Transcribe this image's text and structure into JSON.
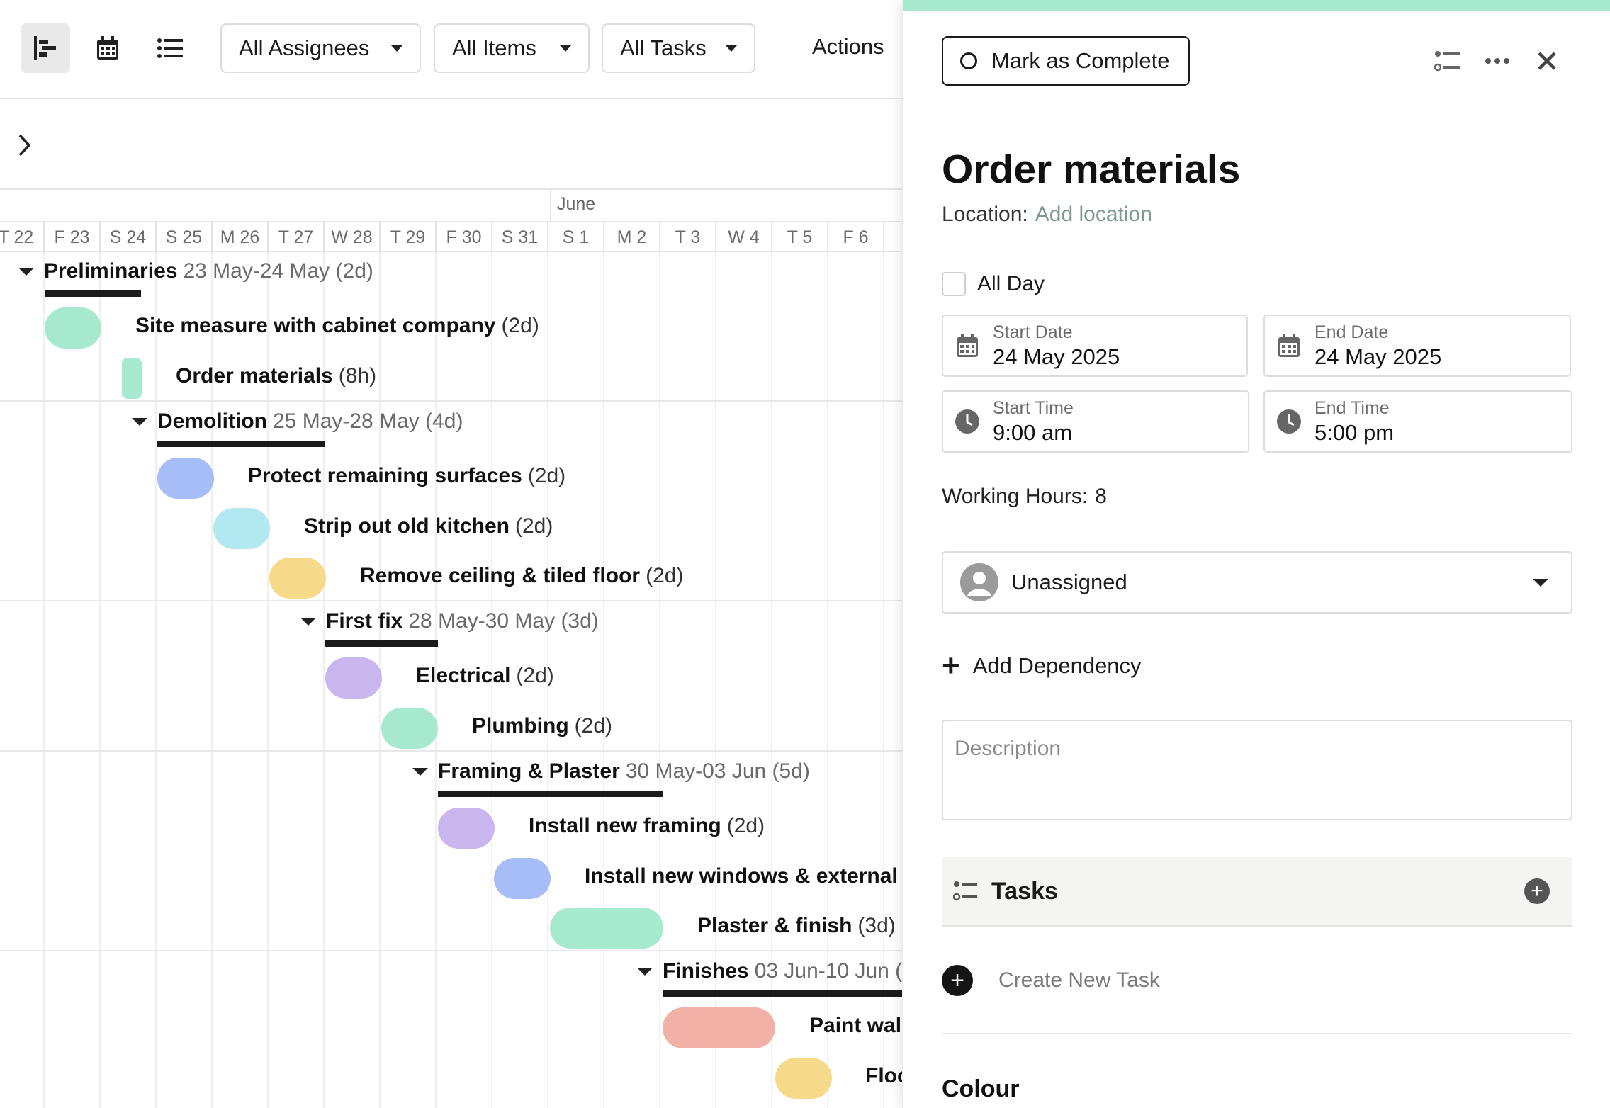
{
  "toolbar": {
    "views": [
      {
        "name": "gantt",
        "icon": "gantt-icon",
        "active": true
      },
      {
        "name": "calendar",
        "icon": "calendar-icon",
        "active": false
      },
      {
        "name": "list",
        "icon": "list-icon",
        "active": false
      }
    ],
    "assignees_label": "All Assignees",
    "items_label": "All Items",
    "tasks_label": "All Tasks",
    "actions_label": "Actions"
  },
  "gantt": {
    "month_label": "June",
    "days": [
      "T 22",
      "F 23",
      "S 24",
      "S 25",
      "M 26",
      "T 27",
      "W 28",
      "T 29",
      "F 30",
      "S 31",
      "S 1",
      "M 2",
      "T 3",
      "W 4",
      "T 5",
      "F 6"
    ],
    "groups": [
      {
        "name": "Preliminaries",
        "dates": "23 May-24 May (2d)"
      },
      {
        "name": "Demolition",
        "dates": "25 May-28 May (4d)"
      },
      {
        "name": "First fix",
        "dates": "28 May-30 May (3d)"
      },
      {
        "name": "Framing & Plaster",
        "dates": "30 May-03 Jun (5d)"
      },
      {
        "name": "Finishes",
        "dates": "03 Jun-10 Jun ("
      }
    ],
    "tasks": [
      {
        "name": "Site measure with cabinet company",
        "duration": "(2d)",
        "color": "#a6e9cf"
      },
      {
        "name": "Order materials",
        "duration": "(8h)",
        "color": "#a6e9cf"
      },
      {
        "name": "Protect remaining surfaces",
        "duration": "(2d)",
        "color": "#a7bdf7"
      },
      {
        "name": "Strip out old kitchen",
        "duration": "(2d)",
        "color": "#b2e9f0"
      },
      {
        "name": "Remove ceiling & tiled floor",
        "duration": "(2d)",
        "color": "#f7d98a"
      },
      {
        "name": "Electrical",
        "duration": "(2d)",
        "color": "#c9b6ef"
      },
      {
        "name": "Plumbing",
        "duration": "(2d)",
        "color": "#a6e9cf"
      },
      {
        "name": "Install new framing",
        "duration": "(2d)",
        "color": "#c9b6ef"
      },
      {
        "name": "Install new windows & external c",
        "duration": "",
        "color": "#a7bdf7"
      },
      {
        "name": "Plaster & finish",
        "duration": "(3d)",
        "color": "#a6e9cf"
      },
      {
        "name": "Paint wall",
        "duration": "",
        "color": "#f2b1a7"
      },
      {
        "name": "Floo",
        "duration": "",
        "color": "#f7d98a"
      }
    ]
  },
  "panel": {
    "accent": "#a6e9cf",
    "complete_label": "Mark as Complete",
    "title": "Order materials",
    "location_label": "Location:",
    "location_value": "Add location",
    "all_day_label": "All Day",
    "start_date_label": "Start Date",
    "start_date": "24 May 2025",
    "end_date_label": "End Date",
    "end_date": "24 May 2025",
    "start_time_label": "Start Time",
    "start_time": "9:00 am",
    "end_time_label": "End Time",
    "end_time": "5:00 pm",
    "working_hours_label": "Working Hours:",
    "working_hours": "8",
    "assignee": "Unassigned",
    "add_dependency": "Add Dependency",
    "description_placeholder": "Description",
    "tasks_title": "Tasks",
    "create_task": "Create New Task",
    "colour_title": "Colour"
  }
}
